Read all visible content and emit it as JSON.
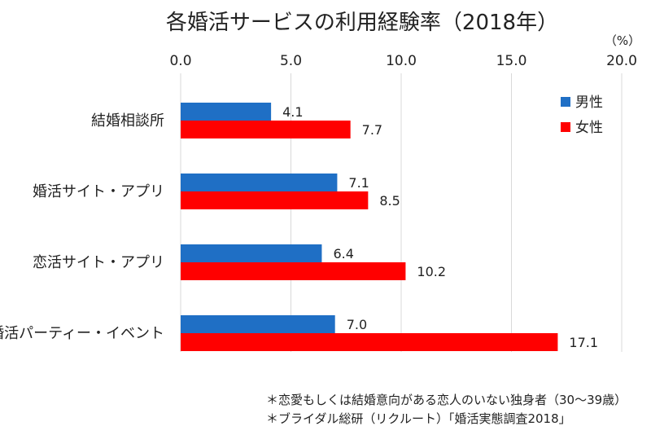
{
  "chart_data": {
    "type": "bar",
    "orientation": "horizontal",
    "title": "各婚活サービスの利用経験率（2018年）",
    "unit_label": "（%）",
    "categories": [
      "結婚相談所",
      "婚活サイト・アプリ",
      "恋活サイト・アプリ",
      "婚活パーティー・イベント"
    ],
    "series": [
      {
        "name": "男性",
        "color": "#1f6fc5",
        "values": [
          4.1,
          7.1,
          6.4,
          7.0
        ]
      },
      {
        "name": "女性",
        "color": "#ff0000",
        "values": [
          7.7,
          8.5,
          10.2,
          17.1
        ]
      }
    ],
    "value_labels": [
      [
        "4.1",
        "7.1",
        "6.4",
        "7.0"
      ],
      [
        "7.7",
        "8.5",
        "10.2",
        "17.1"
      ]
    ],
    "xlim": [
      0,
      20
    ],
    "xticks": [
      "0.0",
      "5.0",
      "10.0",
      "15.0",
      "20.0"
    ],
    "x_axis_position": "top",
    "grid": true,
    "legend_position": "top-right"
  },
  "notes": [
    "＊恋愛もしくは結婚意向がある恋人のいない独身者（30〜39歳）",
    "＊ブライダル総研（リクルート）「婚活実態調査2018」"
  ]
}
